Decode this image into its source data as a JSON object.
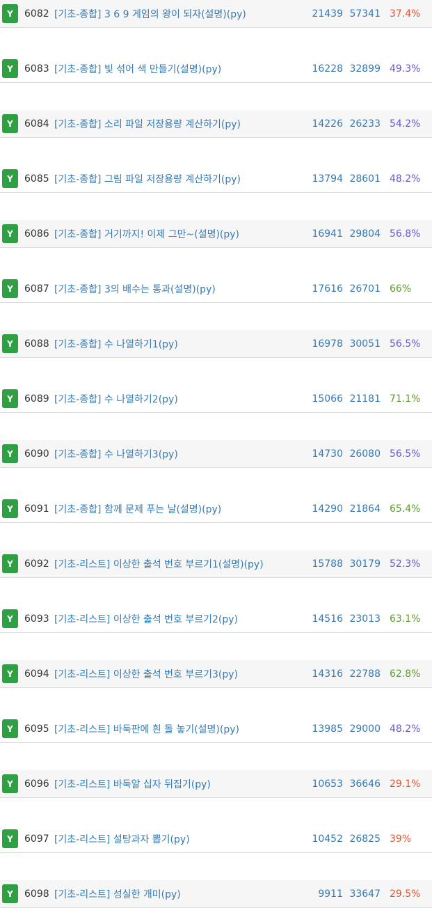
{
  "colors": {
    "badge": "#2ea043",
    "link": "#337ab7",
    "ratio_low": "#e8552d",
    "ratio_mid": "#6b57d6",
    "ratio_high": "#5f9d2a"
  },
  "rows": [
    {
      "badge": "Y",
      "id": "6082",
      "title": "[기초-종합] 3 6 9 게임의 왕이 되자(설명)(py)",
      "solved": "21439",
      "submitted": "57341",
      "ratio": "37.4%",
      "ratio_level": "low"
    },
    {
      "badge": "Y",
      "id": "6083",
      "title": "[기초-종합] 빛 섞어 색 만들기(설명)(py)",
      "solved": "16228",
      "submitted": "32899",
      "ratio": "49.3%",
      "ratio_level": "mid"
    },
    {
      "badge": "Y",
      "id": "6084",
      "title": "[기초-종합] 소리 파일 저장용량 계산하기(py)",
      "solved": "14226",
      "submitted": "26233",
      "ratio": "54.2%",
      "ratio_level": "mid"
    },
    {
      "badge": "Y",
      "id": "6085",
      "title": "[기초-종합] 그림 파일 저장용량 계산하기(py)",
      "solved": "13794",
      "submitted": "28601",
      "ratio": "48.2%",
      "ratio_level": "mid"
    },
    {
      "badge": "Y",
      "id": "6086",
      "title": "[기초-종합] 거기까지! 이제 그만~(설명)(py)",
      "solved": "16941",
      "submitted": "29804",
      "ratio": "56.8%",
      "ratio_level": "mid"
    },
    {
      "badge": "Y",
      "id": "6087",
      "title": "[기초-종합] 3의 배수는 통과(설명)(py)",
      "solved": "17616",
      "submitted": "26701",
      "ratio": "66%",
      "ratio_level": "high"
    },
    {
      "badge": "Y",
      "id": "6088",
      "title": "[기초-종합] 수 나열하기1(py)",
      "solved": "16978",
      "submitted": "30051",
      "ratio": "56.5%",
      "ratio_level": "mid"
    },
    {
      "badge": "Y",
      "id": "6089",
      "title": "[기초-종합] 수 나열하기2(py)",
      "solved": "15066",
      "submitted": "21181",
      "ratio": "71.1%",
      "ratio_level": "high"
    },
    {
      "badge": "Y",
      "id": "6090",
      "title": "[기초-종합] 수 나열하기3(py)",
      "solved": "14730",
      "submitted": "26080",
      "ratio": "56.5%",
      "ratio_level": "mid"
    },
    {
      "badge": "Y",
      "id": "6091",
      "title": "[기초-종합] 함께 문제 푸는 날(설명)(py)",
      "solved": "14290",
      "submitted": "21864",
      "ratio": "65.4%",
      "ratio_level": "high"
    },
    {
      "badge": "Y",
      "id": "6092",
      "title": "[기초-리스트] 이상한 출석 번호 부르기1(설명)(py)",
      "solved": "15788",
      "submitted": "30179",
      "ratio": "52.3%",
      "ratio_level": "mid"
    },
    {
      "badge": "Y",
      "id": "6093",
      "title": "[기초-리스트] 이상한 출석 번호 부르기2(py)",
      "solved": "14516",
      "submitted": "23013",
      "ratio": "63.1%",
      "ratio_level": "high"
    },
    {
      "badge": "Y",
      "id": "6094",
      "title": "[기초-리스트] 이상한 출석 번호 부르기3(py)",
      "solved": "14316",
      "submitted": "22788",
      "ratio": "62.8%",
      "ratio_level": "high"
    },
    {
      "badge": "Y",
      "id": "6095",
      "title": "[기초-리스트] 바둑판에 흰 돌 놓기(설명)(py)",
      "solved": "13985",
      "submitted": "29000",
      "ratio": "48.2%",
      "ratio_level": "mid"
    },
    {
      "badge": "Y",
      "id": "6096",
      "title": "[기초-리스트] 바둑알 십자 뒤집기(py)",
      "solved": "10653",
      "submitted": "36646",
      "ratio": "29.1%",
      "ratio_level": "low"
    },
    {
      "badge": "Y",
      "id": "6097",
      "title": "[기초-리스트] 설탕과자 뽑기(py)",
      "solved": "10452",
      "submitted": "26825",
      "ratio": "39%",
      "ratio_level": "low"
    },
    {
      "badge": "Y",
      "id": "6098",
      "title": "[기초-리스트] 성실한 개미(py)",
      "solved": "9911",
      "submitted": "33647",
      "ratio": "29.5%",
      "ratio_level": "low"
    }
  ]
}
